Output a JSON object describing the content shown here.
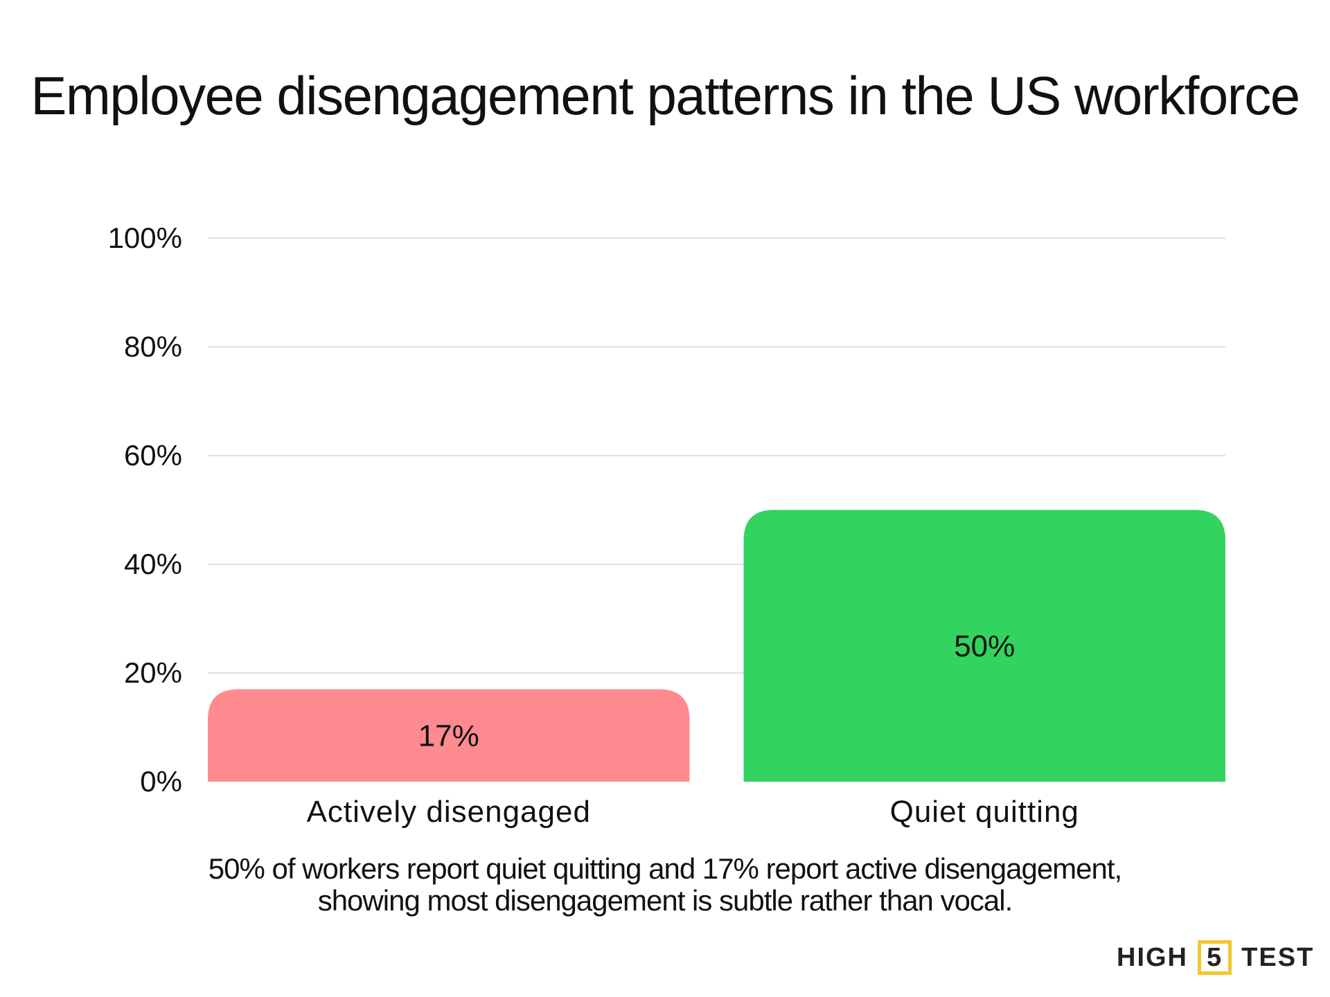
{
  "chart_data": {
    "type": "bar",
    "title": "Employee disengagement patterns in the US workforce",
    "categories": [
      "Actively disengaged",
      "Quiet quitting"
    ],
    "values": [
      17,
      50
    ],
    "value_labels": [
      "17%",
      "50%"
    ],
    "colors": [
      "#FF8A8F",
      "#32D35E"
    ],
    "ylim": [
      0,
      100
    ],
    "yticks": [
      0,
      20,
      40,
      60,
      80,
      100
    ],
    "ytick_labels": [
      "0%",
      "20%",
      "40%",
      "60%",
      "80%",
      "100%"
    ],
    "grid": true,
    "xlabel": "",
    "ylabel": ""
  },
  "caption_lines": [
    "50% of workers report quiet quitting and 17% report active disengagement,",
    "showing most disengagement is subtle rather than vocal."
  ],
  "logo": {
    "left": "HIGH",
    "box": "5",
    "right": "TEST",
    "accent": "#F2C62F"
  }
}
